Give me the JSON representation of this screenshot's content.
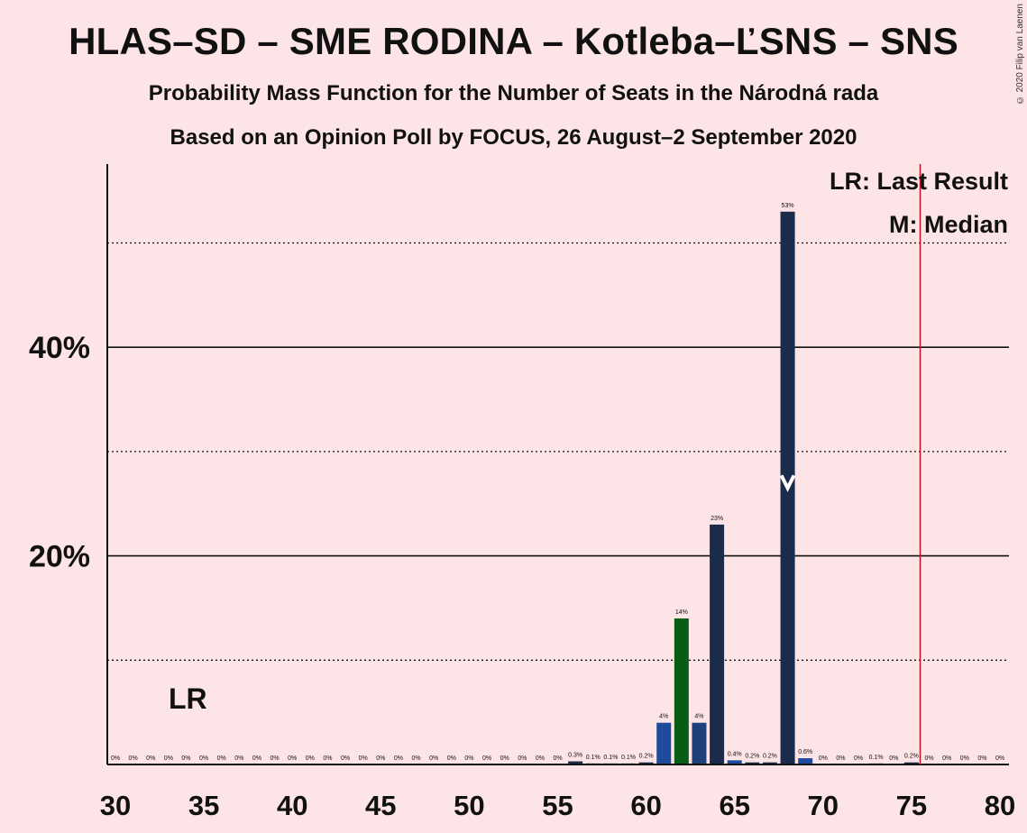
{
  "title": "HLAS–SD – SME RODINA – Kotleba–ĽSNS – SNS",
  "subtitle_1": "Probability Mass Function for the Number of Seats in the Národná rada",
  "subtitle_2": "Based on an Opinion Poll by FOCUS, 26 August–2 September 2020",
  "copyright": "© 2020 Filip van Laenen",
  "legend": {
    "last_result": "LR: Last Result",
    "median": "M: Median",
    "lr_marker": "LR"
  },
  "colors": {
    "background": "#fde4e6",
    "bar_dark": "#1b2b4b",
    "bar_green": "#0a5c14",
    "bar_blue": "#1f3f7a",
    "bar_mid": "#1e4b9c",
    "majority_line": "#c0151f"
  },
  "chart_data": {
    "type": "bar",
    "title": "HLAS–SD – SME RODINA – Kotleba–ĽSNS – SNS",
    "xlabel": "",
    "ylabel": "",
    "xlim": [
      30,
      80
    ],
    "ylim": [
      0,
      57
    ],
    "x_ticks": [
      30,
      35,
      40,
      45,
      50,
      55,
      60,
      65,
      70,
      75,
      80
    ],
    "y_ticks_major": [
      20,
      40
    ],
    "y_tick_labels": [
      "20%",
      "40%"
    ],
    "y_ticks_minor": [
      10,
      30,
      50
    ],
    "grid": true,
    "median_seat": 68,
    "last_result_seat": 34,
    "majority_threshold": 76,
    "x": [
      30,
      31,
      32,
      33,
      34,
      35,
      36,
      37,
      38,
      39,
      40,
      41,
      42,
      43,
      44,
      45,
      46,
      47,
      48,
      49,
      50,
      51,
      52,
      53,
      54,
      55,
      56,
      57,
      58,
      59,
      60,
      61,
      62,
      63,
      64,
      65,
      66,
      67,
      68,
      69,
      70,
      71,
      72,
      73,
      74,
      75,
      76,
      77,
      78,
      79,
      80
    ],
    "values": [
      0,
      0,
      0,
      0,
      0,
      0,
      0,
      0,
      0,
      0,
      0,
      0,
      0,
      0,
      0,
      0,
      0,
      0,
      0,
      0,
      0,
      0,
      0,
      0,
      0,
      0,
      0.3,
      0.1,
      0.1,
      0.1,
      0.2,
      4,
      14,
      4,
      23,
      0.4,
      0.2,
      0.2,
      53,
      0.6,
      0,
      0,
      0,
      0.1,
      0,
      0.2,
      0,
      0,
      0,
      0,
      0
    ],
    "labels": [
      "0%",
      "0%",
      "0%",
      "0%",
      "0%",
      "0%",
      "0%",
      "0%",
      "0%",
      "0%",
      "0%",
      "0%",
      "0%",
      "0%",
      "0%",
      "0%",
      "0%",
      "0%",
      "0%",
      "0%",
      "0%",
      "0%",
      "0%",
      "0%",
      "0%",
      "0%",
      "0.3%",
      "0.1%",
      "0.1%",
      "0.1%",
      "0.2%",
      "4%",
      "14%",
      "4%",
      "23%",
      "0.4%",
      "0.2%",
      "0.2%",
      "53%",
      "0.6%",
      "0%",
      "0%",
      "0%",
      "0.1%",
      "0%",
      "0.2%",
      "0%",
      "0%",
      "0%",
      "0%",
      "0%"
    ],
    "bar_color_keys": {
      "61": "bar_mid",
      "62": "bar_green",
      "63": "bar_blue",
      "65": "bar_mid",
      "69": "bar_mid"
    }
  }
}
